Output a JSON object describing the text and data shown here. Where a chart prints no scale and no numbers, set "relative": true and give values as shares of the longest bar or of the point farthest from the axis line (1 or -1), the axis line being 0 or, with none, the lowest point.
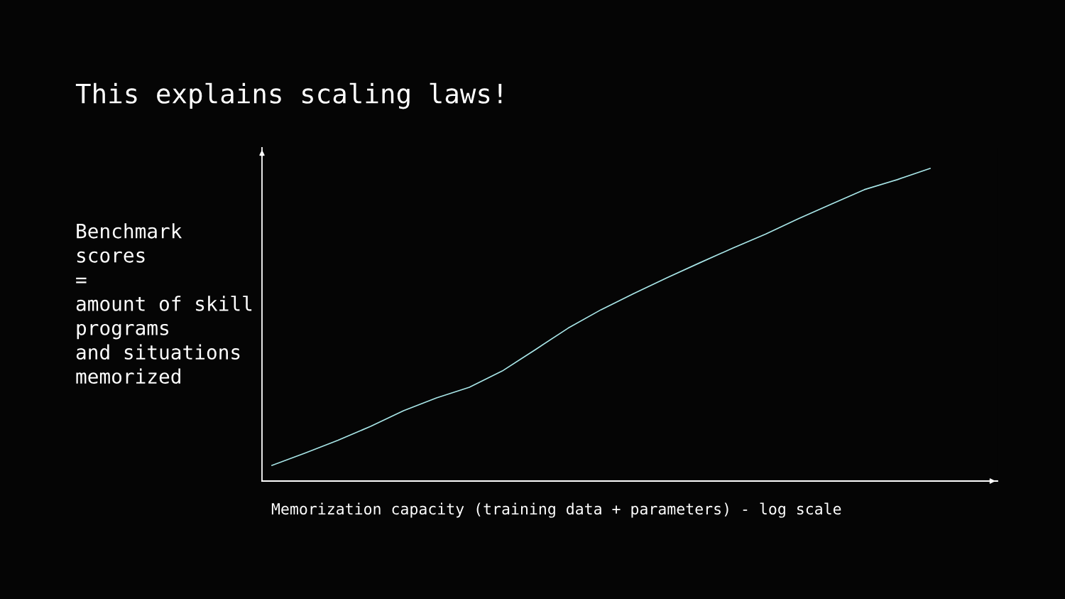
{
  "chart_data": {
    "type": "line",
    "title": "This explains scaling laws!",
    "xlabel": "Memorization capacity (training data + parameters) - log scale",
    "ylabel": "Benchmark\nscores\n=\namount of skill\nprograms\nand situations\nmemorized",
    "relative": true,
    "categories": [
      null,
      null,
      null,
      null,
      null,
      null,
      null,
      null,
      null,
      null,
      null,
      null,
      null,
      null,
      null,
      null,
      null,
      null,
      null,
      null,
      null
    ],
    "series": [
      {
        "color": "#a8e6e8",
        "values": [
          0.05,
          0.089,
          0.13,
          0.175,
          0.225,
          0.266,
          0.3,
          0.352,
          0.42,
          0.489,
          0.548,
          0.6,
          0.65,
          0.698,
          0.745,
          0.79,
          0.839,
          0.886,
          0.932,
          0.964,
          1.0
        ]
      }
    ]
  }
}
